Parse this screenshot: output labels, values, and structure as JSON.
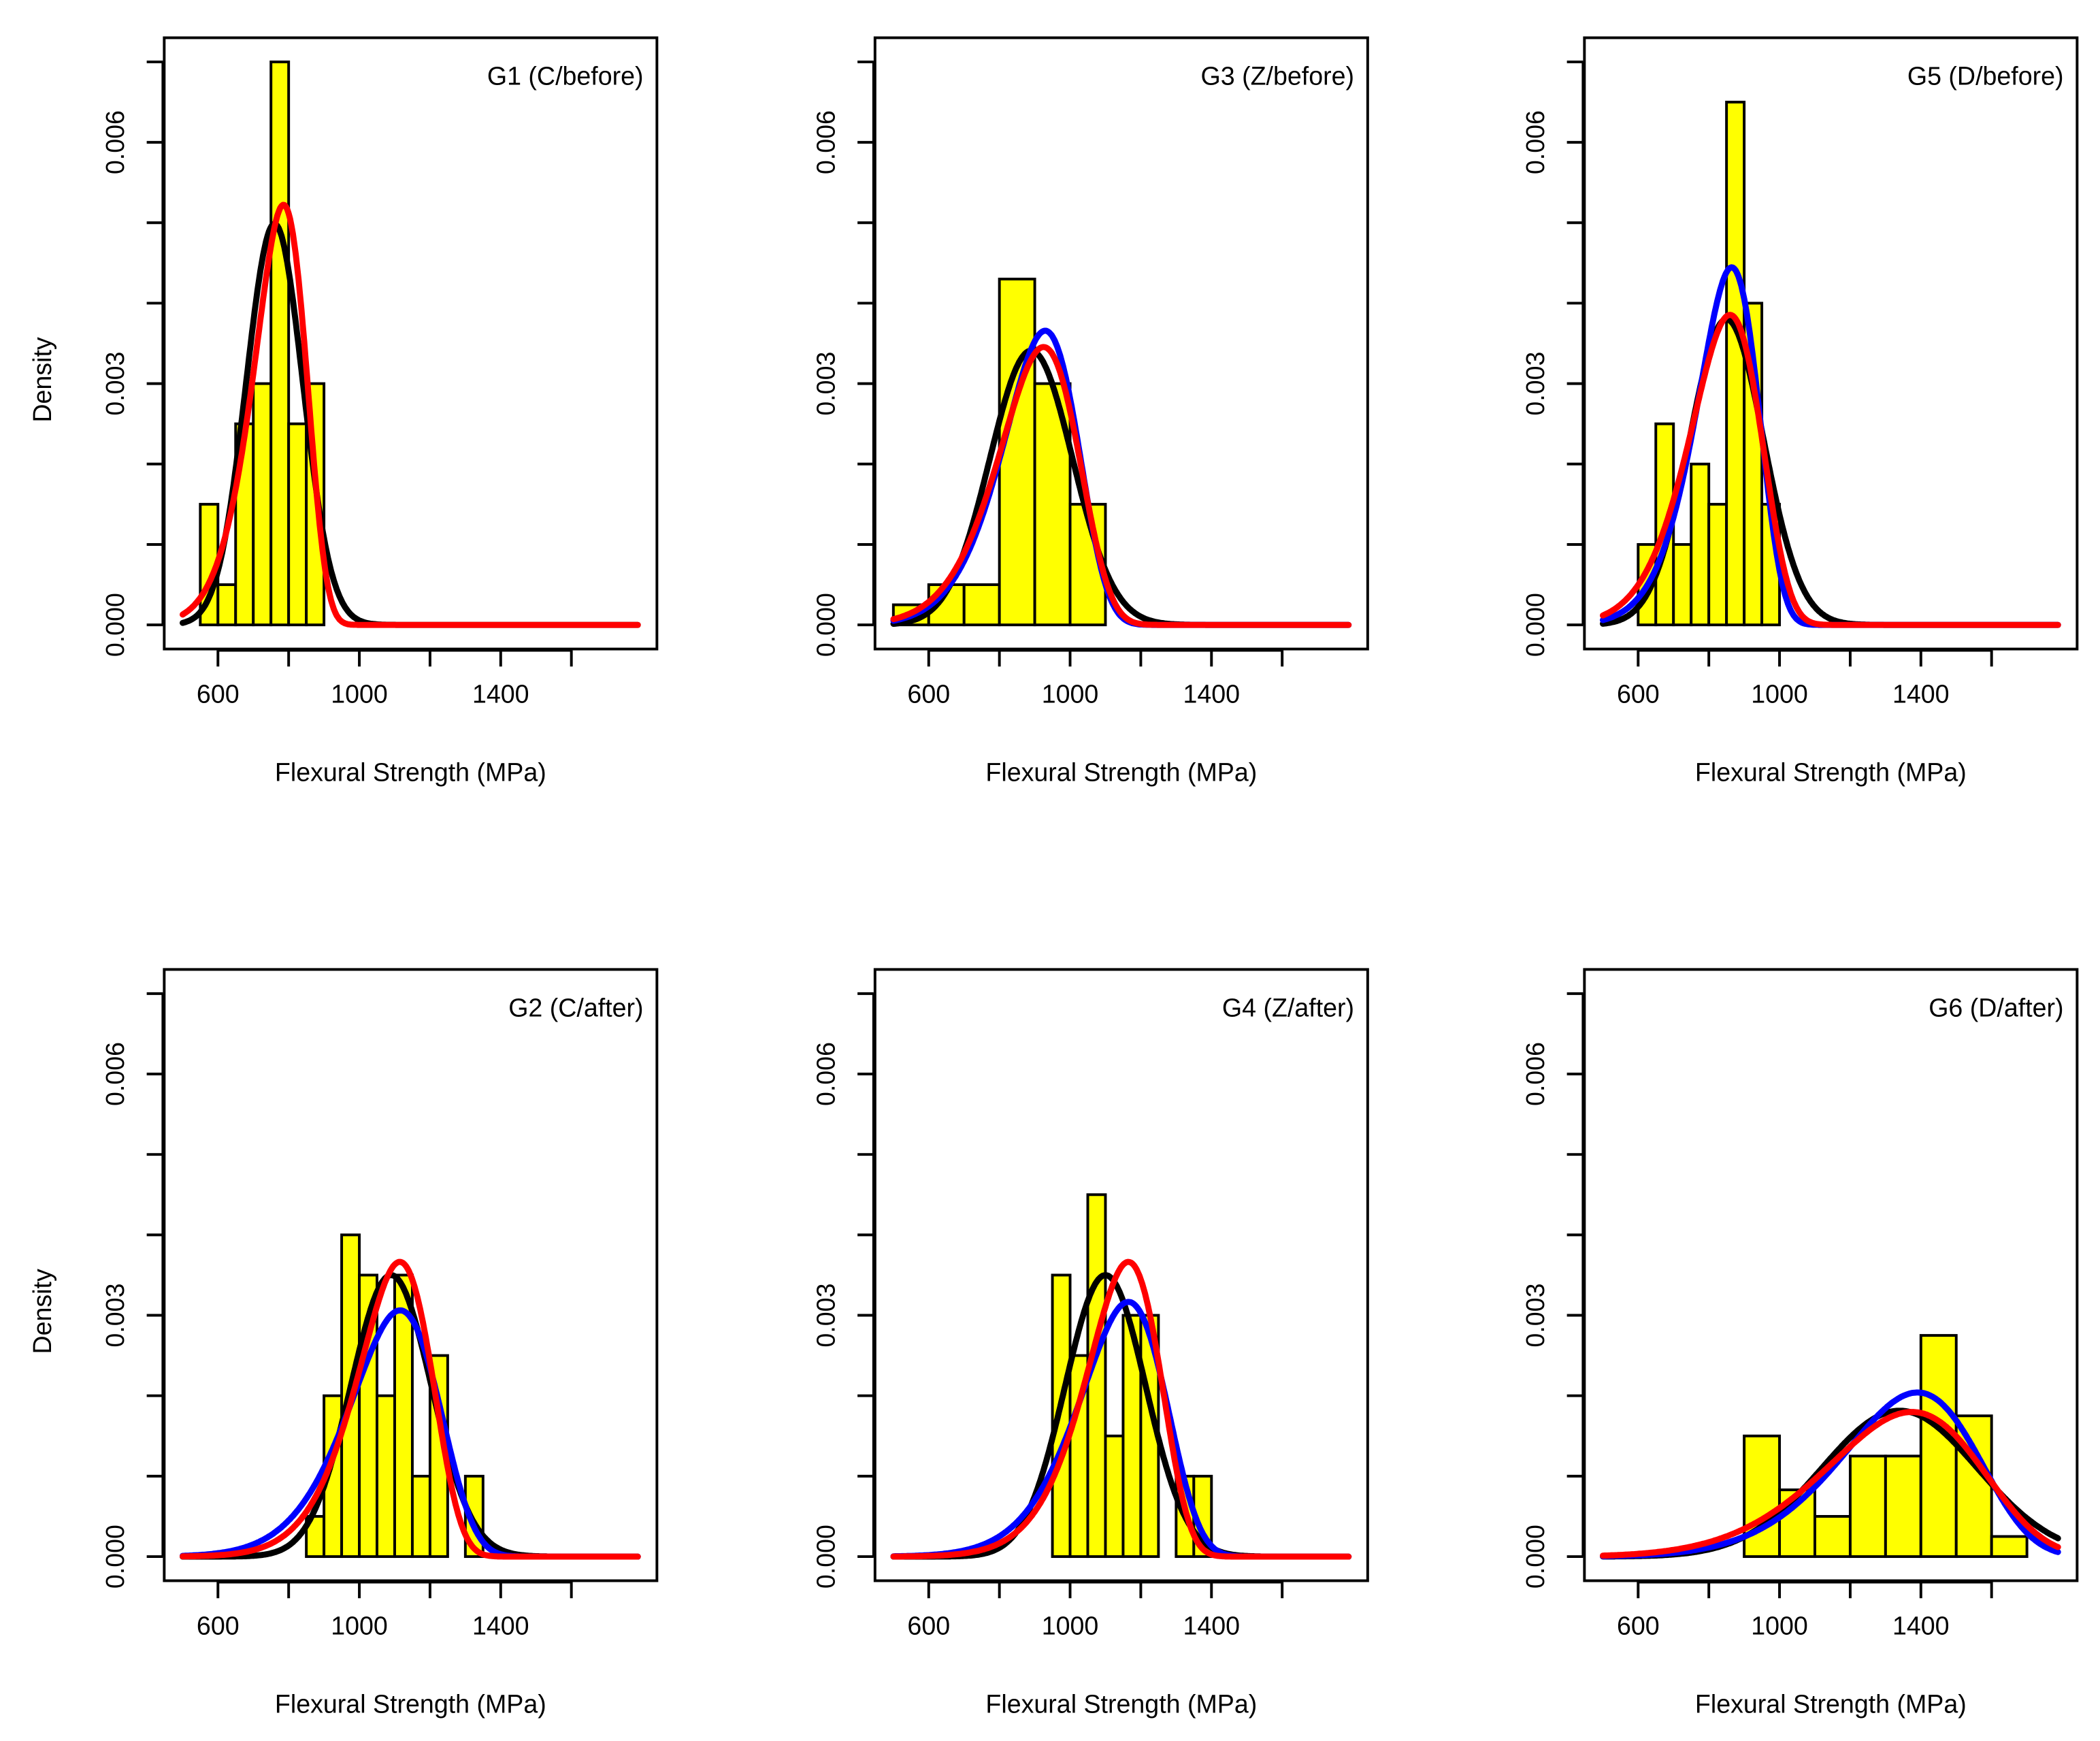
{
  "chart_data": [
    {
      "type": "bar",
      "title": "G1 (C/before)",
      "xlabel": "Flexural Strength (MPa)",
      "ylabel": "Density",
      "xlim": [
        448,
        1842
      ],
      "ylim": [
        -0.0003,
        0.0073
      ],
      "xticks": [
        600,
        800,
        1000,
        1200,
        1400,
        1600
      ],
      "xticklabels": [
        "600",
        "",
        "1000",
        "",
        "1400",
        ""
      ],
      "yticks": [
        0,
        0.001,
        0.002,
        0.003,
        0.004,
        0.005,
        0.006,
        0.007
      ],
      "yticklabels": [
        "0.000",
        "",
        "",
        "0.003",
        "",
        "",
        "0.006",
        ""
      ],
      "histogram": {
        "bin_start": 550,
        "bin_width": 50,
        "density": [
          0.0015,
          0.0005,
          0.0025,
          0.003,
          0.007,
          0.0025,
          0.003
        ]
      },
      "curves": [
        {
          "name": "normal",
          "color": "#000000",
          "dist": "normal",
          "mean": 760,
          "sd": 80
        },
        {
          "name": "weibull",
          "color": "#ff0000",
          "dist": "weibull",
          "shape": 11.2,
          "scale": 792
        }
      ],
      "curve_range": [
        500,
        1790
      ]
    },
    {
      "type": "bar",
      "title": "G3 (Z/before)",
      "xlabel": "Flexural Strength (MPa)",
      "ylabel": "",
      "xlim": [
        448,
        1842
      ],
      "ylim": [
        -0.0003,
        0.0073
      ],
      "xticks": [
        600,
        800,
        1000,
        1200,
        1400,
        1600
      ],
      "xticklabels": [
        "600",
        "",
        "1000",
        "",
        "1400",
        ""
      ],
      "yticks": [
        0,
        0.001,
        0.002,
        0.003,
        0.004,
        0.005,
        0.006,
        0.007
      ],
      "yticklabels": [
        "0.000",
        "",
        "",
        "0.003",
        "",
        "",
        "0.006",
        ""
      ],
      "histogram": {
        "bin_start": 500,
        "bin_width": 100,
        "density": [
          0.00025,
          0.0005,
          0.0005,
          0.0043,
          0.003,
          0.0015
        ]
      },
      "curves": [
        {
          "name": "normal",
          "color": "#000000",
          "dist": "normal",
          "mean": 890,
          "sd": 117
        },
        {
          "name": "blue-fit",
          "color": "#0000ff",
          "dist": "weibull",
          "shape": 9.3,
          "scale": 941
        },
        {
          "name": "weibull",
          "color": "#ff0000",
          "dist": "weibull",
          "shape": 8.75,
          "scale": 938
        }
      ],
      "curve_range": [
        500,
        1790
      ]
    },
    {
      "type": "bar",
      "title": "G5 (D/before)",
      "xlabel": "Flexural Strength (MPa)",
      "ylabel": "",
      "xlim": [
        448,
        1842
      ],
      "ylim": [
        -0.0003,
        0.0073
      ],
      "xticks": [
        600,
        800,
        1000,
        1200,
        1400,
        1600
      ],
      "xticklabels": [
        "600",
        "",
        "1000",
        "",
        "1400",
        ""
      ],
      "yticks": [
        0,
        0.001,
        0.002,
        0.003,
        0.004,
        0.005,
        0.006,
        0.007
      ],
      "yticklabels": [
        "0.000",
        "",
        "",
        "0.003",
        "",
        "",
        "0.006",
        ""
      ],
      "histogram": {
        "bin_start": 600,
        "bin_width": 50,
        "density": [
          0.001,
          0.0025,
          0.001,
          0.002,
          0.0015,
          0.0065,
          0.004,
          0.0015
        ]
      },
      "curves": [
        {
          "name": "normal",
          "color": "#000000",
          "dist": "normal",
          "mean": 850,
          "sd": 105
        },
        {
          "name": "blue-fit",
          "color": "#0000ff",
          "dist": "weibull",
          "shape": 10.5,
          "scale": 873
        },
        {
          "name": "weibull",
          "color": "#ff0000",
          "dist": "weibull",
          "shape": 9.07,
          "scale": 871
        }
      ],
      "curve_range": [
        500,
        1790
      ]
    },
    {
      "type": "bar",
      "title": "G2 (C/after)",
      "xlabel": "Flexural Strength (MPa)",
      "ylabel": "Density",
      "xlim": [
        448,
        1842
      ],
      "ylim": [
        -0.0003,
        0.0073
      ],
      "xticks": [
        600,
        800,
        1000,
        1200,
        1400,
        1600
      ],
      "xticklabels": [
        "600",
        "",
        "1000",
        "",
        "1400",
        ""
      ],
      "yticks": [
        0,
        0.001,
        0.002,
        0.003,
        0.004,
        0.005,
        0.006,
        0.007
      ],
      "yticklabels": [
        "0.000",
        "",
        "",
        "0.003",
        "",
        "",
        "0.006",
        ""
      ],
      "histogram": {
        "bin_start": 850,
        "bin_width": 50,
        "density": [
          0.0005,
          0.002,
          0.004,
          0.0035,
          0.002,
          0.0035,
          0.001,
          0.0025,
          0,
          0.001
        ]
      },
      "curves": [
        {
          "name": "normal",
          "color": "#000000",
          "dist": "normal",
          "mean": 1090,
          "sd": 114
        },
        {
          "name": "blue-fit",
          "color": "#0000ff",
          "dist": "weibull",
          "shape": 9.34,
          "scale": 1129
        },
        {
          "name": "weibull",
          "color": "#ff0000",
          "dist": "weibull",
          "shape": 11.15,
          "scale": 1124
        }
      ],
      "curve_range": [
        500,
        1790
      ]
    },
    {
      "type": "bar",
      "title": "G4 (Z/after)",
      "xlabel": "Flexural Strength (MPa)",
      "ylabel": "",
      "xlim": [
        448,
        1842
      ],
      "ylim": [
        -0.0003,
        0.0073
      ],
      "xticks": [
        600,
        800,
        1000,
        1200,
        1400,
        1600
      ],
      "xticklabels": [
        "600",
        "",
        "1000",
        "",
        "1400",
        ""
      ],
      "yticks": [
        0,
        0.001,
        0.002,
        0.003,
        0.004,
        0.005,
        0.006,
        0.007
      ],
      "yticklabels": [
        "0.000",
        "",
        "",
        "0.003",
        "",
        "",
        "0.006",
        ""
      ],
      "histogram": {
        "bin_start": 950,
        "bin_width": 50,
        "density": [
          0.0035,
          0.0025,
          0.0045,
          0.0015,
          0.003,
          0.003,
          0,
          0.001,
          0.001
        ]
      },
      "curves": [
        {
          "name": "normal",
          "color": "#000000",
          "dist": "normal",
          "mean": 1100,
          "sd": 114
        },
        {
          "name": "blue-fit",
          "color": "#0000ff",
          "dist": "weibull",
          "shape": 10.08,
          "scale": 1177
        },
        {
          "name": "weibull",
          "color": "#ff0000",
          "dist": "weibull",
          "shape": 11.65,
          "scale": 1174
        }
      ],
      "curve_range": [
        500,
        1790
      ]
    },
    {
      "type": "bar",
      "title": "G6 (D/after)",
      "xlabel": "Flexural Strength (MPa)",
      "ylabel": "",
      "xlim": [
        448,
        1842
      ],
      "ylim": [
        -0.0003,
        0.0073
      ],
      "xticks": [
        600,
        800,
        1000,
        1200,
        1400,
        1600
      ],
      "xticklabels": [
        "600",
        "",
        "1000",
        "",
        "1400",
        ""
      ],
      "yticks": [
        0,
        0.001,
        0.002,
        0.003,
        0.004,
        0.005,
        0.006,
        0.007
      ],
      "yticklabels": [
        "0.000",
        "",
        "",
        "0.003",
        "",
        "",
        "0.006",
        ""
      ],
      "histogram": {
        "bin_start": 900,
        "bin_width": 100,
        "density": [
          0.0015,
          0.00083,
          0.0005,
          0.00125,
          0.00125,
          0.00275,
          0.00175,
          0.00025
        ]
      },
      "curves": [
        {
          "name": "normal",
          "color": "#000000",
          "dist": "normal",
          "mean": 1340,
          "sd": 220
        },
        {
          "name": "blue-fit",
          "color": "#0000ff",
          "dist": "weibull",
          "shape": 7.78,
          "scale": 1415
        },
        {
          "name": "weibull",
          "color": "#ff0000",
          "dist": "weibull",
          "shape": 6.8,
          "scale": 1407
        }
      ],
      "curve_range": [
        500,
        1790
      ]
    }
  ],
  "colors": {
    "bar_fill": "#ffff00",
    "bar_edge": "#000000"
  }
}
